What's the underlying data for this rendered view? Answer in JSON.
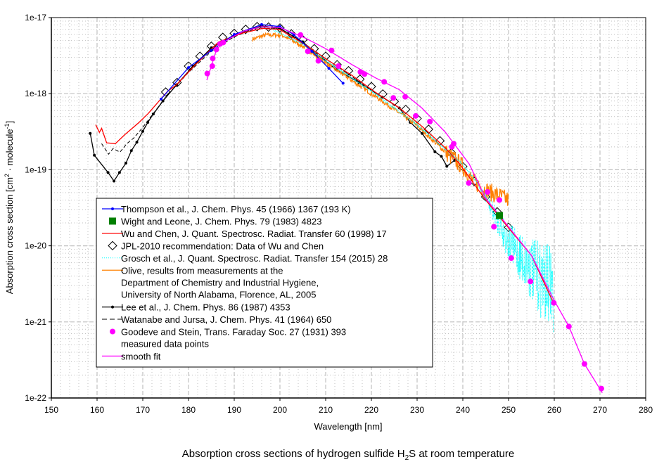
{
  "chart_data": {
    "type": "line",
    "title": {
      "pre": "Absorption cross sections of hydrogen sulfide H",
      "sub": "2",
      "post": "S at room temperature"
    },
    "xlabel": "Wavelength [nm]",
    "ylabel": {
      "a": "Absorption cross section [cm",
      "sup1": "2",
      "b": " · molecule",
      "sup2": "-1",
      "c": "]"
    },
    "xlim": [
      150,
      280
    ],
    "ylim": [
      1e-22,
      1e-17
    ],
    "yscale": "log",
    "grid": true,
    "legend_position": "lower-left",
    "xticks": [
      "150",
      "160",
      "170",
      "180",
      "190",
      "200",
      "210",
      "220",
      "230",
      "240",
      "250",
      "260",
      "270",
      "280"
    ],
    "yticks": [
      "1e-22",
      "1e-21",
      "1e-20",
      "1e-19",
      "1e-18",
      "1e-17"
    ],
    "series": [
      {
        "legend_lines": [
          "Thompson et al., J. Chem. Phys. 45 (1966) 1367 (193 K)"
        ],
        "color": "#0000ff",
        "style": "line-dot",
        "points": [
          [
            174,
            8.5e-19
          ],
          [
            180,
            2.2e-18
          ],
          [
            185,
            3.7e-18
          ],
          [
            190,
            6e-18
          ],
          [
            196,
            8.1e-18
          ],
          [
            200,
            7.6e-18
          ],
          [
            203,
            6e-18
          ],
          [
            207,
            3.6e-18
          ],
          [
            210.7,
            2.15e-18
          ],
          [
            213.8,
            1.37e-18
          ]
        ]
      },
      {
        "legend_lines": [
          "Wight and Leone, J. Chem. Phys. 79 (1983) 4823"
        ],
        "color": "#008000",
        "style": "square",
        "points": [
          [
            248.0,
            2.5e-20
          ]
        ]
      },
      {
        "legend_lines": [
          "Wu and Chen, J. Quant. Spectrosc. Radiat. Transfer 60 (1998) 17"
        ],
        "color": "#ff0000",
        "style": "line",
        "points": [
          [
            159.7,
            3.9e-19
          ],
          [
            160.5,
            3.1e-19
          ],
          [
            161.0,
            3.5e-19
          ],
          [
            162.1,
            2.26e-19
          ],
          [
            164.0,
            2.2e-19
          ],
          [
            166.1,
            2.9e-19
          ],
          [
            169.2,
            4.2e-19
          ],
          [
            171.2,
            5.5e-19
          ],
          [
            175.4,
            1.07e-18
          ],
          [
            177.4,
            1.31e-18
          ],
          [
            181.5,
            2.4e-18
          ],
          [
            186.6,
            4.8e-18
          ],
          [
            191.6,
            6.2e-18
          ],
          [
            196.2,
            7.2e-18
          ],
          [
            199.9,
            7e-18
          ],
          [
            205.5,
            4.4e-18
          ],
          [
            210.7,
            2.7e-18
          ],
          [
            215.8,
            1.73e-18
          ],
          [
            220.8,
            1.05e-18
          ],
          [
            226.1,
            6.5e-19
          ],
          [
            231.1,
            3.7e-19
          ],
          [
            236.2,
            1.93e-19
          ],
          [
            239.3,
            1.19e-19
          ],
          [
            245,
            4e-20
          ],
          [
            250,
            1.72e-20
          ],
          [
            255,
            7.5e-21
          ],
          [
            259.6,
            1.9e-21
          ]
        ]
      },
      {
        "legend_lines": [
          "JPL-2010 recommendation: Data of Wu and Chen"
        ],
        "color": "#000000",
        "style": "diamond",
        "points": [
          [
            175,
            1.05e-18
          ],
          [
            177.5,
            1.4e-18
          ],
          [
            180,
            2.3e-18
          ],
          [
            182.5,
            3.1e-18
          ],
          [
            185,
            4.2e-18
          ],
          [
            187.5,
            5.5e-18
          ],
          [
            190,
            6.2e-18
          ],
          [
            192.5,
            7e-18
          ],
          [
            195,
            7.6e-18
          ],
          [
            197.5,
            7.5e-18
          ],
          [
            200,
            7.3e-18
          ],
          [
            202.5,
            6.1e-18
          ],
          [
            205,
            5.1e-18
          ],
          [
            207.5,
            3.9e-18
          ],
          [
            210,
            3.1e-18
          ],
          [
            212.5,
            2.4e-18
          ],
          [
            215,
            2e-18
          ],
          [
            217.5,
            1.55e-18
          ],
          [
            220,
            1.24e-18
          ],
          [
            222.5,
            9.9e-19
          ],
          [
            225,
            7.9e-19
          ],
          [
            227.5,
            6.2e-19
          ],
          [
            230,
            4.7e-19
          ],
          [
            232.5,
            3.4e-19
          ],
          [
            235,
            2.4e-19
          ],
          [
            237.5,
            1.67e-19
          ],
          [
            240,
            1.1e-19
          ],
          [
            242.5,
            7e-20
          ],
          [
            245,
            4.4e-20
          ],
          [
            247.5,
            2.8e-20
          ],
          [
            250,
            1.75e-20
          ]
        ]
      },
      {
        "legend_lines": [
          "Grosch et al., J. Quant. Spectrosc. Radiat. Transfer 154 (2015) 28"
        ],
        "color": "#00ffff",
        "style": "dotted-noisy",
        "points": [
          [
            198,
            7.3e-18
          ],
          [
            205,
            4.6e-18
          ],
          [
            210,
            2.8e-18
          ],
          [
            220,
            1.1e-18
          ],
          [
            230,
            4e-19
          ],
          [
            240,
            1.2e-19
          ],
          [
            245,
            5e-20
          ],
          [
            248,
            2.9e-20
          ],
          [
            250,
            2e-20
          ],
          [
            253,
            1.55e-20
          ],
          [
            256,
            1.2e-20
          ],
          [
            259.6,
            1e-20
          ],
          [
            259.8,
            7.2e-22
          ]
        ]
      },
      {
        "legend_lines": [
          "Olive, results from measurements at the",
          "Department of Chemistry and Industrial Hygiene,",
          "University of North Alabama, Florence, AL, 2005"
        ],
        "color": "#ff8000",
        "style": "line-noisy",
        "points": [
          [
            194,
            5.2e-18
          ],
          [
            197,
            5.9e-18
          ],
          [
            200.4,
            5.9e-18
          ],
          [
            205,
            4.2e-18
          ],
          [
            210,
            2.55e-18
          ],
          [
            215,
            1.6e-18
          ],
          [
            220,
            1e-18
          ],
          [
            225,
            6.2e-19
          ],
          [
            230,
            3.8e-19
          ],
          [
            236,
            1.75e-19
          ],
          [
            240,
            1.1e-19
          ],
          [
            242,
            7.3e-20
          ],
          [
            245,
            5.4e-20
          ],
          [
            248,
            4.5e-20
          ],
          [
            250,
            4e-20
          ]
        ]
      },
      {
        "legend_lines": [
          "Lee et al., J. Chem. Phys. 86 (1987) 4353"
        ],
        "color": "#000000",
        "style": "line-dot",
        "points": [
          [
            158.5,
            3e-19
          ],
          [
            159.4,
            1.55e-19
          ],
          [
            162.4,
            9.2e-20
          ],
          [
            163.7,
            7.1e-20
          ],
          [
            164.9,
            9.2e-20
          ],
          [
            166.3,
            1.22e-19
          ],
          [
            167.5,
            1.78e-19
          ],
          [
            168.7,
            2.3e-19
          ],
          [
            170.0,
            3.2e-19
          ],
          [
            171.1,
            4.2e-19
          ],
          [
            172.3,
            5.4e-19
          ],
          [
            174.4,
            8e-19
          ],
          [
            177.4,
            1.31e-18
          ],
          [
            181,
            2.3e-18
          ],
          [
            185,
            4e-18
          ],
          [
            190,
            5.9e-18
          ],
          [
            196,
            7.8e-18
          ],
          [
            200,
            7.2e-18
          ],
          [
            205,
            4.8e-18
          ],
          [
            208,
            3.3e-18
          ],
          [
            212.2,
            2.1e-18
          ],
          [
            217.3,
            1.4e-18
          ],
          [
            222.4,
            9e-19
          ],
          [
            226.1,
            6.5e-19
          ],
          [
            228.5,
            4.2e-19
          ],
          [
            231.1,
            3e-19
          ],
          [
            233.9,
            1.72e-19
          ],
          [
            235.3,
            1.5e-19
          ],
          [
            236.5,
            1.11e-19
          ],
          [
            238.2,
            1.33e-19
          ]
        ]
      },
      {
        "legend_lines": [
          "Watanabe and Jursa,  J. Chem. Phys. 41 (1964) 650"
        ],
        "color": "#000000",
        "style": "dashed",
        "points": [
          [
            161,
            2.2e-19
          ],
          [
            162.5,
            1.6e-19
          ],
          [
            163.5,
            1.9e-19
          ],
          [
            165,
            1.7e-19
          ],
          [
            166.5,
            2.2e-19
          ],
          [
            168,
            2.6e-19
          ],
          [
            170,
            3.6e-19
          ],
          [
            175,
            9e-19
          ],
          [
            180,
            1.9e-18
          ],
          [
            185,
            3.6e-18
          ],
          [
            190,
            5.6e-18
          ],
          [
            195,
            7.3e-18
          ],
          [
            200,
            7.2e-18
          ],
          [
            205,
            4.7e-18
          ],
          [
            210,
            2.9e-18
          ],
          [
            215,
            1.8e-18
          ],
          [
            220,
            1.1e-18
          ]
        ]
      },
      {
        "legend_lines": [
          "Goodeve and Stein, Trans. Faraday Soc. 27 (1931) 393",
          "measured data points"
        ],
        "color": "#ff00ff",
        "style": "dot",
        "points": [
          [
            184.1,
            1.84e-18
          ],
          [
            185.2,
            2.3e-18
          ],
          [
            185.3,
            2.9e-18
          ],
          [
            186.1,
            3.8e-18
          ],
          [
            186.9,
            4.5e-18
          ],
          [
            187.6,
            4.7e-18
          ],
          [
            204.5,
            5.9e-18
          ],
          [
            206.1,
            3.6e-18
          ],
          [
            208.4,
            2.7e-18
          ],
          [
            211.3,
            3.7e-18
          ],
          [
            212.8,
            2.3e-18
          ],
          [
            217.6,
            1.93e-18
          ],
          [
            218.5,
            1.81e-18
          ],
          [
            222.8,
            1.43e-18
          ],
          [
            224.8,
            8.8e-19
          ],
          [
            227.4,
            9.1e-19
          ],
          [
            229.7,
            5.1e-19
          ],
          [
            232.8,
            4.3e-19
          ],
          [
            237.6,
            2e-19
          ],
          [
            238.0,
            2.2e-19
          ],
          [
            241.3,
            6.7e-20
          ],
          [
            245.4,
            5.1e-20
          ],
          [
            246.8,
            1.78e-20
          ],
          [
            248.0,
            4e-20
          ],
          [
            250.6,
            6.9e-21
          ],
          [
            254.8,
            3.4e-21
          ],
          [
            259.9,
            1.78e-21
          ],
          [
            263.2,
            8.7e-22
          ],
          [
            266.6,
            2.8e-22
          ],
          [
            270.3,
            1.33e-22
          ]
        ]
      },
      {
        "legend_lines": [
          "smooth fit"
        ],
        "color": "#ff00ff",
        "style": "line",
        "points": [
          [
            184.0,
            1.5e-18
          ],
          [
            185,
            2.3e-18
          ],
          [
            186,
            3.6e-18
          ],
          [
            187,
            4.4e-18
          ],
          [
            189,
            5.3e-18
          ],
          [
            192,
            6.6e-18
          ],
          [
            196,
            7.6e-18
          ],
          [
            200,
            7.4e-18
          ],
          [
            205.5,
            5.4e-18
          ],
          [
            210,
            3.9e-18
          ],
          [
            215.8,
            2.4e-18
          ],
          [
            221,
            1.6e-18
          ],
          [
            226.1,
            1.13e-18
          ],
          [
            231,
            6.5e-19
          ],
          [
            236.2,
            3.1e-19
          ],
          [
            241.4,
            1.19e-19
          ],
          [
            245,
            4.2e-20
          ],
          [
            250,
            1.78e-20
          ],
          [
            255,
            7.5e-21
          ],
          [
            260,
            1.9e-21
          ],
          [
            263.2,
            8.7e-22
          ],
          [
            266.6,
            2.8e-22
          ],
          [
            270.5,
            1.17e-22
          ]
        ]
      }
    ]
  }
}
